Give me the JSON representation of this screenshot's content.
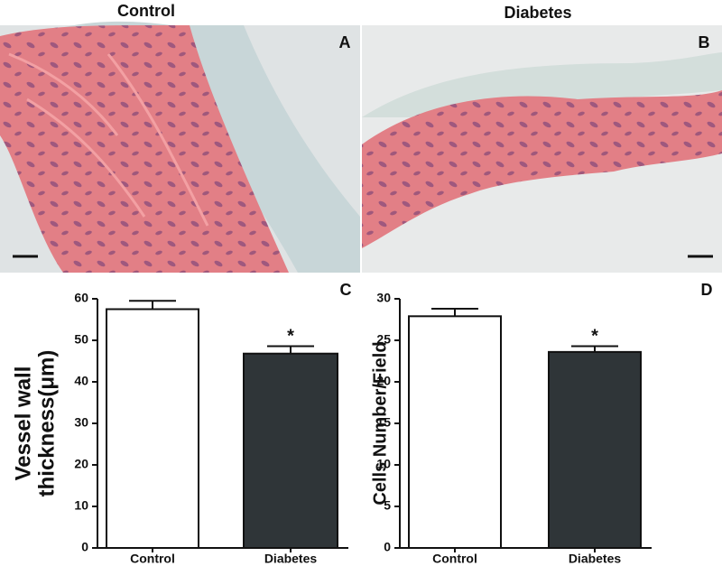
{
  "panels": [
    {
      "title": "Control",
      "label": "A"
    },
    {
      "title": "Diabetes",
      "label": "B"
    }
  ],
  "chart_data": [
    {
      "type": "bar",
      "label": "C",
      "ylabel": [
        "Vessel wall",
        "thickness(μm)"
      ],
      "categories": [
        "Control",
        "Diabetes"
      ],
      "values": [
        57.5,
        46.8
      ],
      "errors": [
        2,
        1.8
      ],
      "colors": [
        "#ffffff",
        "#2f3538"
      ],
      "significance": [
        null,
        "*"
      ],
      "ylim": [
        0,
        60
      ],
      "yticks": [
        0,
        10,
        20,
        30,
        40,
        50,
        60
      ]
    },
    {
      "type": "bar",
      "label": "D",
      "ylabel": [
        "Cells Number/Field"
      ],
      "categories": [
        "Control",
        "Diabetes"
      ],
      "values": [
        27.9,
        23.6
      ],
      "errors": [
        0.9,
        0.7
      ],
      "colors": [
        "#ffffff",
        "#2f3538"
      ],
      "significance": [
        null,
        "*"
      ],
      "ylim": [
        0,
        30
      ],
      "yticks": [
        0,
        5,
        10,
        15,
        20,
        25,
        30
      ]
    }
  ]
}
